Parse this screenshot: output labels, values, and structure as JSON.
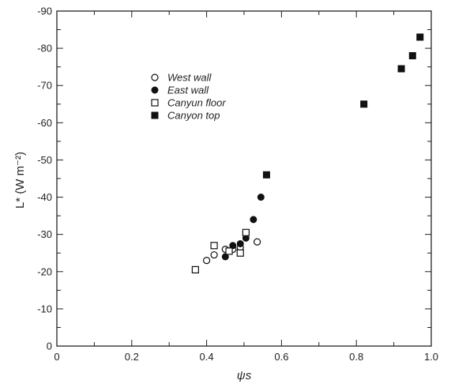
{
  "chart_data": {
    "type": "scatter",
    "title": "",
    "xlabel": "ψs",
    "ylabel": "L* (W m⁻²)",
    "xlim": [
      0,
      1.0
    ],
    "ylim": [
      0,
      -90
    ],
    "x_ticks": [
      0,
      0.2,
      0.4,
      0.6,
      0.8,
      1.0
    ],
    "x_tick_labels": [
      "0",
      "0.2",
      "0.4",
      "0.6",
      "0.8",
      "1.0"
    ],
    "y_ticks": [
      0,
      -10,
      -20,
      -30,
      -40,
      -50,
      -60,
      -70,
      -80,
      -90
    ],
    "y_tick_labels": [
      "0",
      "-10",
      "-20",
      "-30",
      "-40",
      "-50",
      "-60",
      "-70",
      "-80",
      "-90"
    ],
    "grid": false,
    "legend_position": "upper-left",
    "series": [
      {
        "name": "West wall",
        "marker": "open-circle",
        "points": [
          [
            0.4,
            -23
          ],
          [
            0.42,
            -24.5
          ],
          [
            0.45,
            -26
          ],
          [
            0.47,
            -26
          ],
          [
            0.49,
            -26.5
          ],
          [
            0.535,
            -28
          ]
        ]
      },
      {
        "name": "East wall",
        "marker": "filled-circle",
        "points": [
          [
            0.45,
            -24
          ],
          [
            0.47,
            -27
          ],
          [
            0.49,
            -27.5
          ],
          [
            0.505,
            -29
          ],
          [
            0.525,
            -34
          ],
          [
            0.545,
            -40
          ]
        ]
      },
      {
        "name": "Canyun floor",
        "marker": "open-square",
        "points": [
          [
            0.37,
            -20.5
          ],
          [
            0.42,
            -27
          ],
          [
            0.46,
            -25.5
          ],
          [
            0.49,
            -25
          ],
          [
            0.505,
            -30.5
          ]
        ]
      },
      {
        "name": "Canyon top",
        "marker": "filled-square",
        "points": [
          [
            0.56,
            -46
          ],
          [
            0.82,
            -65
          ],
          [
            0.92,
            -74.5
          ],
          [
            0.95,
            -78
          ],
          [
            0.97,
            -83
          ]
        ]
      }
    ]
  }
}
